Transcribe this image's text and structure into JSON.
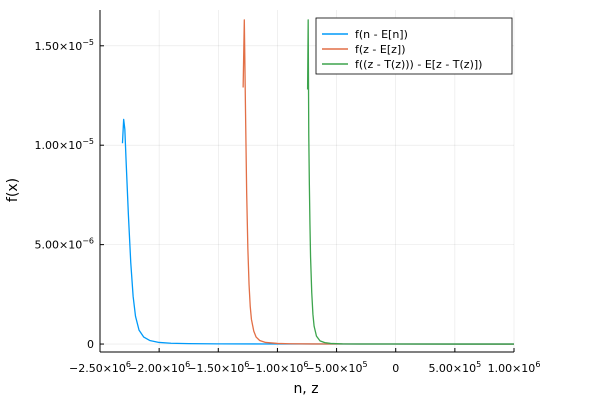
{
  "chart_data": {
    "type": "line",
    "title": "",
    "xlabel": "n, z",
    "ylabel": "f(x)",
    "xlim": [
      -2500000,
      1000000
    ],
    "ylim": [
      -4e-07,
      1.68e-05
    ],
    "grid": true,
    "legend_position": "top-right",
    "xticks": [
      {
        "value": -2500000,
        "base": "−2.50×10",
        "exp": "6"
      },
      {
        "value": -2000000,
        "base": "−2.00×10",
        "exp": "6"
      },
      {
        "value": -1500000,
        "base": "−1.50×10",
        "exp": "6"
      },
      {
        "value": -1000000,
        "base": "−1.00×10",
        "exp": "6"
      },
      {
        "value": -500000,
        "base": "−5.00×10",
        "exp": "5"
      },
      {
        "value": 0,
        "base": "0",
        "exp": ""
      },
      {
        "value": 500000,
        "base": "5.00×10",
        "exp": "5"
      },
      {
        "value": 1000000,
        "base": "1.00×10",
        "exp": "6"
      }
    ],
    "yticks": [
      {
        "value": 0,
        "base": "0",
        "exp": ""
      },
      {
        "value": 5e-06,
        "base": "5.00×10",
        "exp": "−6"
      },
      {
        "value": 1e-05,
        "base": "1.00×10",
        "exp": "−5"
      },
      {
        "value": 1.5e-05,
        "base": "1.50×10",
        "exp": "−5"
      }
    ],
    "series": [
      {
        "name": "f(n - E[n])",
        "color": "#009af9",
        "x": [
          -2310000,
          -2300000,
          -2290000,
          -2280000,
          -2260000,
          -2240000,
          -2220000,
          -2200000,
          -2170000,
          -2130000,
          -2080000,
          -2000000,
          -1900000,
          -1750000,
          -1500000,
          -1000000,
          0,
          1000000
        ],
        "y": [
          1.01e-05,
          1.13e-05,
          1.08e-05,
          9.3e-06,
          6.5e-06,
          4.1e-06,
          2.4e-06,
          1.4e-06,
          7e-07,
          3.5e-07,
          1.8e-07,
          8e-08,
          4e-08,
          2e-08,
          1e-08,
          3e-09,
          1e-09,
          0
        ]
      },
      {
        "name": "f(z - E[z])",
        "color": "#e26f46",
        "x": [
          -1290000,
          -1280000,
          -1270000,
          -1260000,
          -1250000,
          -1240000,
          -1230000,
          -1220000,
          -1200000,
          -1180000,
          -1150000,
          -1100000,
          -1000000,
          -900000,
          -700000,
          -400000,
          0,
          1000000
        ],
        "y": [
          1.29e-05,
          1.63e-05,
          1.18e-05,
          7.6e-06,
          4.8e-06,
          3e-06,
          1.9e-06,
          1.25e-06,
          6.5e-07,
          3.5e-07,
          1.8e-07,
          8e-08,
          3e-08,
          1.5e-08,
          6e-09,
          3e-09,
          1e-09,
          0
        ]
      },
      {
        "name": "f((z - T(z))) - E[z - T(z)])",
        "color": "#3da44d",
        "x": [
          -745000,
          -740000,
          -735000,
          -730000,
          -725000,
          -720000,
          -710000,
          -700000,
          -690000,
          -670000,
          -640000,
          -600000,
          -550000,
          -450000,
          -300000,
          0,
          500000,
          1000000
        ],
        "y": [
          1.28e-05,
          1.63e-05,
          1.05e-05,
          8e-06,
          6e-06,
          4.4e-06,
          2.6e-06,
          1.5e-06,
          9e-07,
          4e-07,
          1.6e-07,
          7e-08,
          3e-08,
          1e-08,
          4e-09,
          1e-09,
          0,
          0
        ]
      }
    ]
  }
}
